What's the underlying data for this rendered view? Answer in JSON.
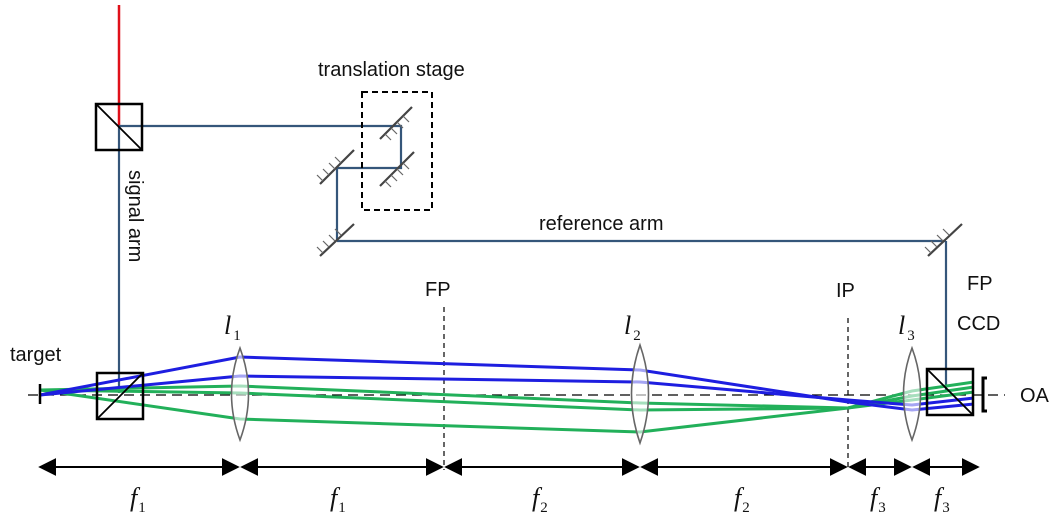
{
  "labels": {
    "translation_stage": "translation stage",
    "signal_arm": "signal arm",
    "reference_arm": "reference arm",
    "target": "target",
    "fp_left": "FP",
    "ip": "IP",
    "fp_right": "FP",
    "ccd": "CCD",
    "oa": "OA"
  },
  "lenses": [
    {
      "symbol": "l",
      "index": "1"
    },
    {
      "symbol": "l",
      "index": "2"
    },
    {
      "symbol": "l",
      "index": "3"
    }
  ],
  "distances": [
    {
      "symbol": "f",
      "index": "1"
    },
    {
      "symbol": "f",
      "index": "1"
    },
    {
      "symbol": "f",
      "index": "2"
    },
    {
      "symbol": "f",
      "index": "2"
    },
    {
      "symbol": "f",
      "index": "3"
    },
    {
      "symbol": "f",
      "index": "3"
    }
  ],
  "colors": {
    "laser": "#e0101a",
    "signal_beam": "#35567a",
    "blue_rays": "#1e1ee0",
    "green_rays": "#22b05a"
  }
}
